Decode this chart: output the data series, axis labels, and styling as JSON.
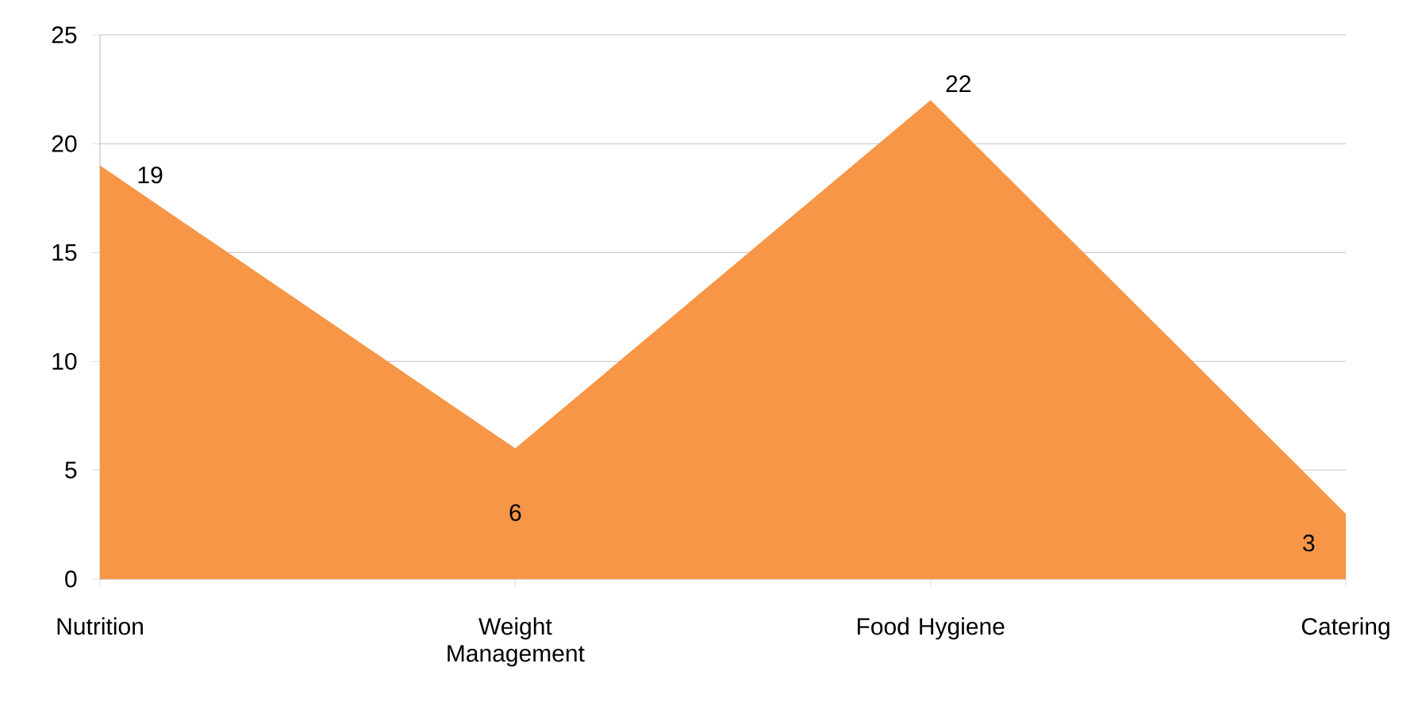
{
  "chart_data": {
    "type": "area",
    "categories": [
      "Nutrition",
      "Weight Management",
      "Food Hygiene",
      "Catering"
    ],
    "values": [
      19,
      6,
      22,
      3
    ],
    "color": "#f79646",
    "ylim": [
      0,
      25
    ],
    "yticks": [
      0,
      5,
      10,
      15,
      20,
      25
    ],
    "grid": "y",
    "data_labels": true
  }
}
